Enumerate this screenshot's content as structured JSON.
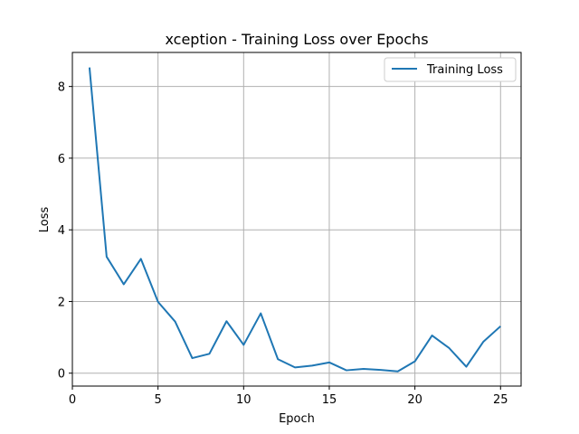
{
  "chart_data": {
    "type": "line",
    "title": "xception - Training Loss over Epochs",
    "xlabel": "Epoch",
    "ylabel": "Loss",
    "xlim": [
      0,
      26.2
    ],
    "ylim": [
      -0.36,
      8.95
    ],
    "xticks": [
      0,
      5,
      10,
      15,
      20,
      25
    ],
    "yticks": [
      0,
      2,
      4,
      6,
      8
    ],
    "grid": true,
    "legend_position": "top-right",
    "series": [
      {
        "name": "Training Loss",
        "color": "#1f77b4",
        "x": [
          1,
          2,
          3,
          4,
          5,
          6,
          7,
          8,
          9,
          10,
          11,
          12,
          13,
          14,
          15,
          16,
          17,
          18,
          19,
          20,
          21,
          22,
          23,
          24,
          25
        ],
        "y": [
          8.53,
          3.25,
          2.48,
          3.19,
          1.99,
          1.44,
          0.42,
          0.54,
          1.45,
          0.79,
          1.67,
          0.39,
          0.16,
          0.21,
          0.3,
          0.08,
          0.12,
          0.09,
          0.05,
          0.33,
          1.05,
          0.7,
          0.18,
          0.88,
          1.31
        ]
      }
    ]
  }
}
